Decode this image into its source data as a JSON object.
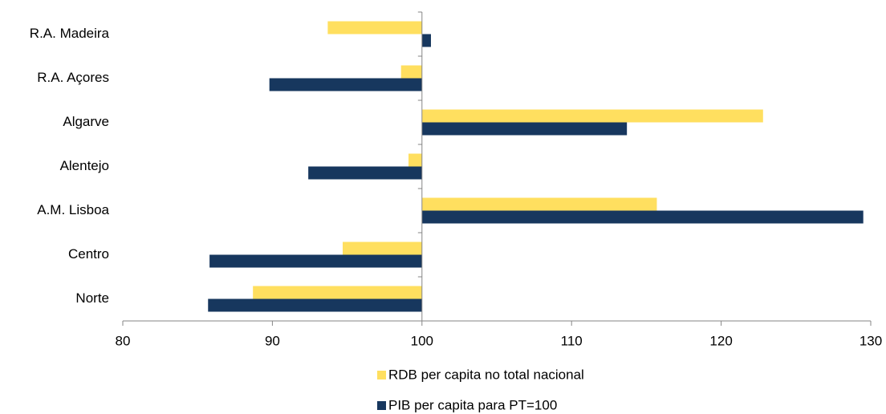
{
  "chart_data": {
    "type": "bar",
    "orientation": "horizontal",
    "categories": [
      "R.A. Madeira",
      "R.A. Açores",
      "Algarve",
      "Alentejo",
      "A.M. Lisboa",
      "Centro",
      "Norte"
    ],
    "series": [
      {
        "name": "RDB per capita no total nacional",
        "color": "#ffdf5f",
        "values": [
          93.7,
          98.6,
          122.8,
          99.1,
          115.7,
          94.7,
          88.7
        ]
      },
      {
        "name": "PIB per capita para PT=100",
        "color": "#17375e",
        "values": [
          100.6,
          89.8,
          113.7,
          92.4,
          129.5,
          85.8,
          85.7
        ]
      }
    ],
    "xlim": [
      80,
      130
    ],
    "xticks": [
      80,
      90,
      100,
      110,
      120,
      130
    ],
    "axis_crossing": 100,
    "grid": false,
    "legend": "bottom"
  }
}
